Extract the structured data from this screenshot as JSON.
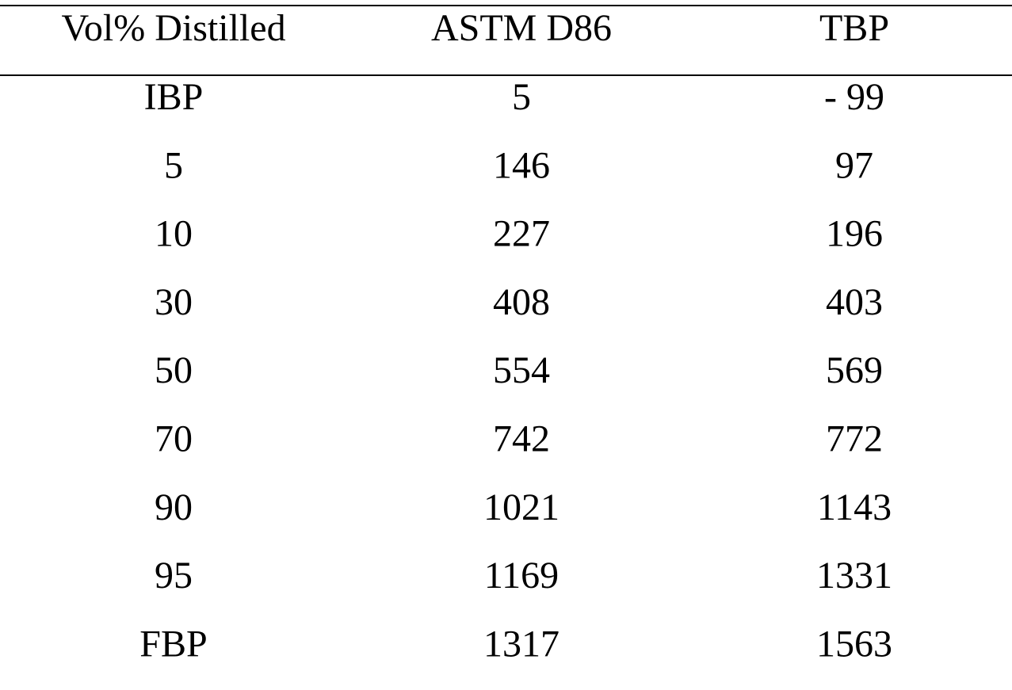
{
  "table": {
    "header": [
      "Vol% Distilled",
      "ASTM D86",
      "TBP"
    ],
    "rows": [
      [
        "IBP",
        5,
        "- 99"
      ],
      [
        5,
        146,
        97
      ],
      [
        10,
        227,
        196
      ],
      [
        30,
        408,
        403
      ],
      [
        50,
        554,
        569
      ],
      [
        70,
        742,
        772
      ],
      [
        90,
        1021,
        1143
      ],
      [
        95,
        1169,
        1331
      ],
      [
        "FBP",
        1317,
        1563
      ]
    ]
  }
}
